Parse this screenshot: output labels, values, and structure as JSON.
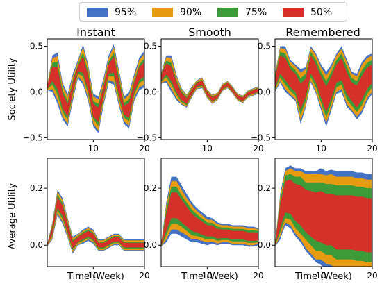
{
  "legend": [
    {
      "label": "95%",
      "color": "#4472c4"
    },
    {
      "label": "90%",
      "color": "#e69b10"
    },
    {
      "label": "75%",
      "color": "#3c9a38"
    },
    {
      "label": "50%",
      "color": "#d6302b"
    }
  ],
  "titles": {
    "instant": "Instant",
    "smooth": "Smooth",
    "remembered": "Remembered"
  },
  "ylabels": {
    "top": "Society Utility",
    "bottom": "Average Utility"
  },
  "xlabel": "Time (Week)",
  "chart_data": {
    "type": "area",
    "layout": "2x3 grid, shared x per column",
    "x": [
      1,
      2,
      3,
      4,
      5,
      6,
      7,
      8,
      9,
      10,
      11,
      12,
      13,
      14,
      15,
      16,
      17,
      18,
      19,
      20
    ],
    "x_ticks": [
      10,
      20
    ],
    "x_tick_labels": [
      "10",
      "20"
    ],
    "bands": [
      "95%",
      "90%",
      "75%",
      "50%"
    ],
    "band_colors": [
      "#4472c4",
      "#e69b10",
      "#3c9a38",
      "#d6302b"
    ],
    "rows": [
      {
        "ylabel": "Society Utility",
        "ylim": [
          -0.52,
          0.58
        ],
        "y_ticks": [
          -0.5,
          0.0,
          0.5
        ],
        "y_tick_labels": [
          "−0.5",
          "0.0",
          "0.5"
        ],
        "panels": [
          {
            "title": "Instant",
            "median": [
              0.05,
              0.2,
              0.15,
              -0.1,
              -0.2,
              0.05,
              0.25,
              0.3,
              0.1,
              -0.2,
              -0.25,
              0.0,
              0.25,
              0.3,
              0.05,
              -0.2,
              -0.2,
              0.05,
              0.2,
              0.25
            ],
            "half_widths": [
              [
                0.03,
                0.2,
                0.28,
                0.2,
                0.18,
                0.15,
                0.1,
                0.22,
                0.2,
                0.18,
                0.2,
                0.15,
                0.15,
                0.22,
                0.2,
                0.15,
                0.2,
                0.15,
                0.18,
                0.2
              ],
              [
                0.03,
                0.17,
                0.24,
                0.17,
                0.15,
                0.12,
                0.08,
                0.19,
                0.17,
                0.15,
                0.17,
                0.12,
                0.12,
                0.19,
                0.17,
                0.12,
                0.17,
                0.12,
                0.15,
                0.17
              ],
              [
                0.02,
                0.12,
                0.18,
                0.12,
                0.1,
                0.08,
                0.05,
                0.13,
                0.12,
                0.1,
                0.12,
                0.08,
                0.08,
                0.13,
                0.12,
                0.08,
                0.12,
                0.08,
                0.1,
                0.12
              ],
              [
                0.02,
                0.08,
                0.12,
                0.08,
                0.07,
                0.05,
                0.03,
                0.09,
                0.08,
                0.07,
                0.08,
                0.05,
                0.05,
                0.09,
                0.08,
                0.05,
                0.08,
                0.05,
                0.07,
                0.08
              ]
            ]
          },
          {
            "title": "Smooth",
            "median": [
              0.15,
              0.25,
              0.2,
              0.05,
              -0.05,
              -0.1,
              0.0,
              0.08,
              0.1,
              -0.02,
              -0.08,
              -0.05,
              0.05,
              0.08,
              0.02,
              -0.06,
              -0.08,
              -0.02,
              0.0,
              0.02
            ],
            "half_widths": [
              [
                0.06,
                0.15,
                0.2,
                0.14,
                0.09,
                0.07,
                0.06,
                0.05,
                0.06,
                0.05,
                0.05,
                0.04,
                0.04,
                0.04,
                0.04,
                0.04,
                0.04,
                0.04,
                0.04,
                0.04
              ],
              [
                0.05,
                0.13,
                0.17,
                0.12,
                0.08,
                0.06,
                0.05,
                0.045,
                0.05,
                0.045,
                0.045,
                0.035,
                0.035,
                0.035,
                0.035,
                0.035,
                0.035,
                0.035,
                0.035,
                0.035
              ],
              [
                0.04,
                0.09,
                0.12,
                0.08,
                0.06,
                0.045,
                0.035,
                0.03,
                0.035,
                0.03,
                0.03,
                0.025,
                0.025,
                0.025,
                0.025,
                0.025,
                0.025,
                0.025,
                0.025,
                0.025
              ],
              [
                0.03,
                0.06,
                0.08,
                0.055,
                0.04,
                0.03,
                0.025,
                0.02,
                0.025,
                0.02,
                0.02,
                0.018,
                0.018,
                0.018,
                0.018,
                0.018,
                0.018,
                0.018,
                0.018,
                0.018
              ]
            ]
          },
          {
            "title": "Remembered",
            "median": [
              0.1,
              0.3,
              0.25,
              0.15,
              0.1,
              -0.05,
              0.05,
              0.3,
              0.2,
              0.05,
              -0.08,
              0.05,
              0.2,
              0.25,
              0.1,
              0.0,
              -0.05,
              0.05,
              0.15,
              0.2
            ],
            "half_widths": [
              [
                0.1,
                0.2,
                0.25,
                0.2,
                0.2,
                0.3,
                0.22,
                0.2,
                0.22,
                0.25,
                0.3,
                0.25,
                0.22,
                0.25,
                0.26,
                0.22,
                0.25,
                0.28,
                0.25,
                0.22
              ],
              [
                0.09,
                0.18,
                0.22,
                0.18,
                0.18,
                0.26,
                0.2,
                0.18,
                0.2,
                0.22,
                0.26,
                0.22,
                0.2,
                0.22,
                0.23,
                0.2,
                0.22,
                0.25,
                0.22,
                0.2
              ],
              [
                0.07,
                0.14,
                0.17,
                0.14,
                0.14,
                0.2,
                0.15,
                0.14,
                0.15,
                0.17,
                0.2,
                0.17,
                0.15,
                0.17,
                0.18,
                0.15,
                0.17,
                0.19,
                0.17,
                0.15
              ],
              [
                0.05,
                0.1,
                0.12,
                0.1,
                0.1,
                0.14,
                0.1,
                0.1,
                0.1,
                0.12,
                0.14,
                0.12,
                0.1,
                0.12,
                0.12,
                0.1,
                0.12,
                0.13,
                0.12,
                0.1
              ]
            ]
          }
        ]
      },
      {
        "ylabel": "Average Utility",
        "ylim": [
          -0.075,
          0.305
        ],
        "y_ticks": [
          0.0,
          0.2
        ],
        "y_tick_labels": [
          "0.0",
          "0.2"
        ],
        "panels": [
          {
            "title": "Instant",
            "median": [
              0.0,
              0.05,
              0.15,
              0.12,
              0.06,
              0.0,
              0.02,
              0.03,
              0.04,
              0.03,
              0.0,
              0.0,
              0.01,
              0.02,
              0.02,
              0.0,
              0.0,
              0.0,
              0.0,
              0.0
            ],
            "half_widths": [
              [
                0.005,
                0.03,
                0.045,
                0.045,
                0.035,
                0.03,
                0.02,
                0.025,
                0.025,
                0.025,
                0.02,
                0.02,
                0.02,
                0.02,
                0.02,
                0.02,
                0.02,
                0.02,
                0.02,
                0.02
              ],
              [
                0.004,
                0.025,
                0.038,
                0.038,
                0.03,
                0.025,
                0.017,
                0.02,
                0.02,
                0.02,
                0.017,
                0.017,
                0.017,
                0.017,
                0.017,
                0.017,
                0.017,
                0.017,
                0.017,
                0.017
              ],
              [
                0.003,
                0.018,
                0.028,
                0.028,
                0.022,
                0.018,
                0.012,
                0.015,
                0.015,
                0.015,
                0.012,
                0.012,
                0.012,
                0.012,
                0.012,
                0.012,
                0.012,
                0.012,
                0.012,
                0.012
              ],
              [
                0.002,
                0.012,
                0.018,
                0.018,
                0.015,
                0.012,
                0.008,
                0.01,
                0.01,
                0.01,
                0.008,
                0.008,
                0.008,
                0.008,
                0.008,
                0.008,
                0.008,
                0.008,
                0.008,
                0.008
              ]
            ]
          },
          {
            "title": "Smooth",
            "median": [
              0.0,
              0.08,
              0.14,
              0.14,
              0.12,
              0.1,
              0.08,
              0.07,
              0.06,
              0.05,
              0.05,
              0.04,
              0.04,
              0.04,
              0.035,
              0.035,
              0.035,
              0.03,
              0.03,
              0.03
            ],
            "half_widths": [
              [
                0.005,
                0.07,
                0.1,
                0.1,
                0.09,
                0.08,
                0.07,
                0.06,
                0.055,
                0.05,
                0.045,
                0.04,
                0.035,
                0.035,
                0.035,
                0.035,
                0.035,
                0.035,
                0.035,
                0.03
              ],
              [
                0.004,
                0.06,
                0.085,
                0.085,
                0.075,
                0.065,
                0.06,
                0.05,
                0.045,
                0.04,
                0.038,
                0.034,
                0.03,
                0.03,
                0.03,
                0.03,
                0.03,
                0.03,
                0.03,
                0.025
              ],
              [
                0.003,
                0.045,
                0.065,
                0.065,
                0.055,
                0.05,
                0.045,
                0.038,
                0.034,
                0.03,
                0.028,
                0.025,
                0.022,
                0.022,
                0.022,
                0.022,
                0.022,
                0.022,
                0.022,
                0.02
              ],
              [
                0.002,
                0.03,
                0.045,
                0.045,
                0.04,
                0.035,
                0.03,
                0.026,
                0.023,
                0.02,
                0.019,
                0.017,
                0.015,
                0.015,
                0.015,
                0.015,
                0.015,
                0.015,
                0.015,
                0.013
              ]
            ]
          },
          {
            "title": "Remembered",
            "median": [
              0.0,
              0.1,
              0.17,
              0.17,
              0.15,
              0.14,
              0.12,
              0.11,
              0.1,
              0.1,
              0.09,
              0.09,
              0.08,
              0.08,
              0.08,
              0.08,
              0.075,
              0.075,
              0.07,
              0.07
            ],
            "half_widths": [
              [
                0.005,
                0.08,
                0.1,
                0.11,
                0.12,
                0.13,
                0.14,
                0.15,
                0.16,
                0.17,
                0.17,
                0.175,
                0.18,
                0.18,
                0.18,
                0.18,
                0.18,
                0.18,
                0.18,
                0.18
              ],
              [
                0.004,
                0.07,
                0.09,
                0.1,
                0.11,
                0.12,
                0.13,
                0.14,
                0.15,
                0.15,
                0.155,
                0.16,
                0.16,
                0.16,
                0.16,
                0.16,
                0.16,
                0.16,
                0.16,
                0.16
              ],
              [
                0.003,
                0.055,
                0.075,
                0.08,
                0.09,
                0.1,
                0.1,
                0.11,
                0.12,
                0.12,
                0.125,
                0.125,
                0.13,
                0.13,
                0.13,
                0.13,
                0.13,
                0.13,
                0.13,
                0.13
              ],
              [
                0.002,
                0.04,
                0.055,
                0.06,
                0.065,
                0.07,
                0.075,
                0.08,
                0.085,
                0.09,
                0.09,
                0.09,
                0.095,
                0.095,
                0.095,
                0.095,
                0.095,
                0.095,
                0.095,
                0.095
              ]
            ]
          }
        ]
      }
    ]
  }
}
